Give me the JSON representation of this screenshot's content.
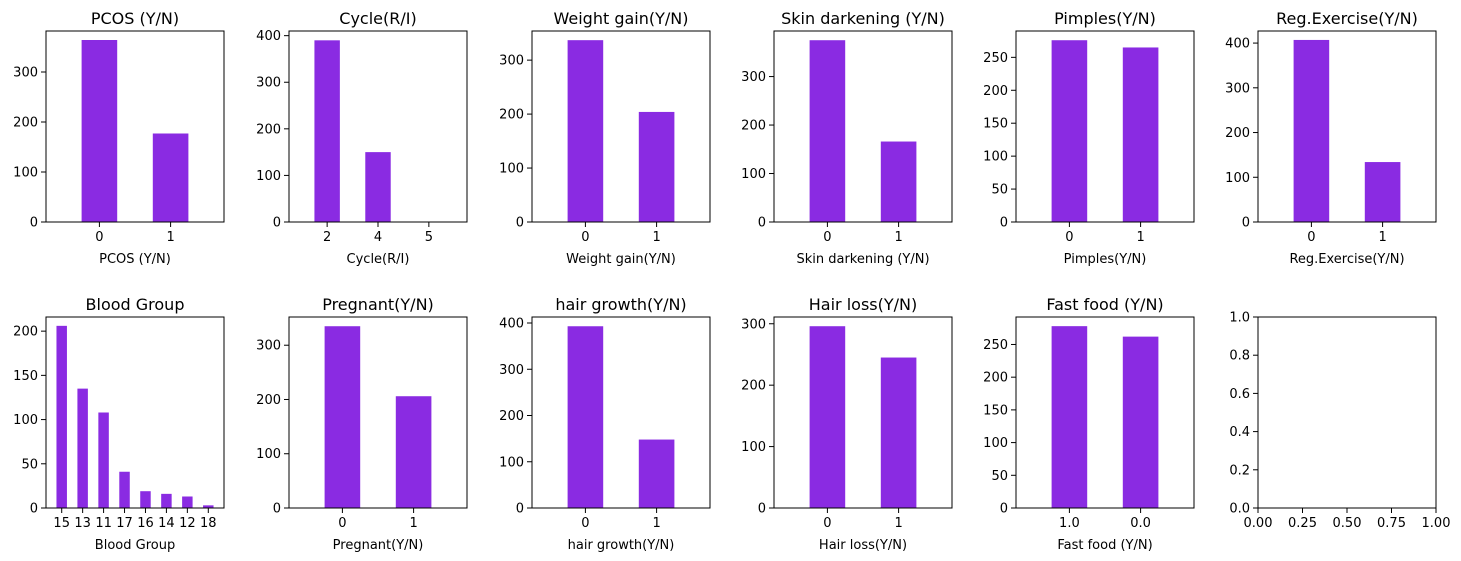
{
  "bar_color": "#8a2be2",
  "chart_data": [
    {
      "type": "bar",
      "title": "PCOS (Y/N)",
      "xlabel": "PCOS (Y/N)",
      "categories": [
        "0",
        "1"
      ],
      "values": [
        364,
        177
      ],
      "ylim": [
        0,
        382
      ],
      "yticks": [
        0,
        100,
        200,
        300
      ]
    },
    {
      "type": "bar",
      "title": "Cycle(R/I)",
      "xlabel": "Cycle(R/I)",
      "categories": [
        "2",
        "4",
        "5"
      ],
      "values": [
        390,
        150,
        1
      ],
      "ylim": [
        0,
        410
      ],
      "yticks": [
        0,
        100,
        200,
        300,
        400
      ]
    },
    {
      "type": "bar",
      "title": "Weight gain(Y/N)",
      "xlabel": "Weight gain(Y/N)",
      "categories": [
        "0",
        "1"
      ],
      "values": [
        337,
        204
      ],
      "ylim": [
        0,
        354
      ],
      "yticks": [
        0,
        100,
        200,
        300
      ]
    },
    {
      "type": "bar",
      "title": "Skin darkening (Y/N)",
      "xlabel": "Skin darkening (Y/N)",
      "categories": [
        "0",
        "1"
      ],
      "values": [
        375,
        166
      ],
      "ylim": [
        0,
        394
      ],
      "yticks": [
        0,
        100,
        200,
        300
      ]
    },
    {
      "type": "bar",
      "title": "Pimples(Y/N)",
      "xlabel": "Pimples(Y/N)",
      "categories": [
        "0",
        "1"
      ],
      "values": [
        276,
        265
      ],
      "ylim": [
        0,
        290
      ],
      "yticks": [
        0,
        50,
        100,
        150,
        200,
        250
      ]
    },
    {
      "type": "bar",
      "title": "Reg.Exercise(Y/N)",
      "xlabel": "Reg.Exercise(Y/N)",
      "categories": [
        "0",
        "1"
      ],
      "values": [
        407,
        134
      ],
      "ylim": [
        0,
        427
      ],
      "yticks": [
        0,
        100,
        200,
        300,
        400
      ]
    },
    {
      "type": "bar",
      "title": "Blood Group",
      "xlabel": "Blood Group",
      "categories": [
        "15",
        "13",
        "11",
        "17",
        "16",
        "14",
        "12",
        "18"
      ],
      "values": [
        206,
        135,
        108,
        41,
        19,
        16,
        13,
        3
      ],
      "ylim": [
        0,
        216
      ],
      "yticks": [
        0,
        50,
        100,
        150,
        200
      ]
    },
    {
      "type": "bar",
      "title": "Pregnant(Y/N)",
      "xlabel": "Pregnant(Y/N)",
      "categories": [
        "0",
        "1"
      ],
      "values": [
        335,
        206
      ],
      "ylim": [
        0,
        352
      ],
      "yticks": [
        0,
        100,
        200,
        300
      ]
    },
    {
      "type": "bar",
      "title": "hair growth(Y/N)",
      "xlabel": "hair growth(Y/N)",
      "categories": [
        "0",
        "1"
      ],
      "values": [
        393,
        148
      ],
      "ylim": [
        0,
        413
      ],
      "yticks": [
        0,
        100,
        200,
        300,
        400
      ]
    },
    {
      "type": "bar",
      "title": "Hair loss(Y/N)",
      "xlabel": "Hair loss(Y/N)",
      "categories": [
        "0",
        "1"
      ],
      "values": [
        296,
        245
      ],
      "ylim": [
        0,
        311
      ],
      "yticks": [
        0,
        100,
        200,
        300
      ]
    },
    {
      "type": "bar",
      "title": "Fast food (Y/N)",
      "xlabel": "Fast food (Y/N)",
      "categories": [
        "1.0",
        "0.0"
      ],
      "values": [
        278,
        262
      ],
      "ylim": [
        0,
        292
      ],
      "yticks": [
        0,
        50,
        100,
        150,
        200,
        250
      ]
    },
    {
      "type": "empty",
      "title": "",
      "xlabel": "",
      "xlim": [
        0,
        1
      ],
      "ylim": [
        0,
        1
      ],
      "xticks": [
        "0.00",
        "0.25",
        "0.50",
        "0.75",
        "1.00"
      ],
      "yticks": [
        "0.0",
        "0.2",
        "0.4",
        "0.6",
        "0.8",
        "1.0"
      ]
    }
  ]
}
